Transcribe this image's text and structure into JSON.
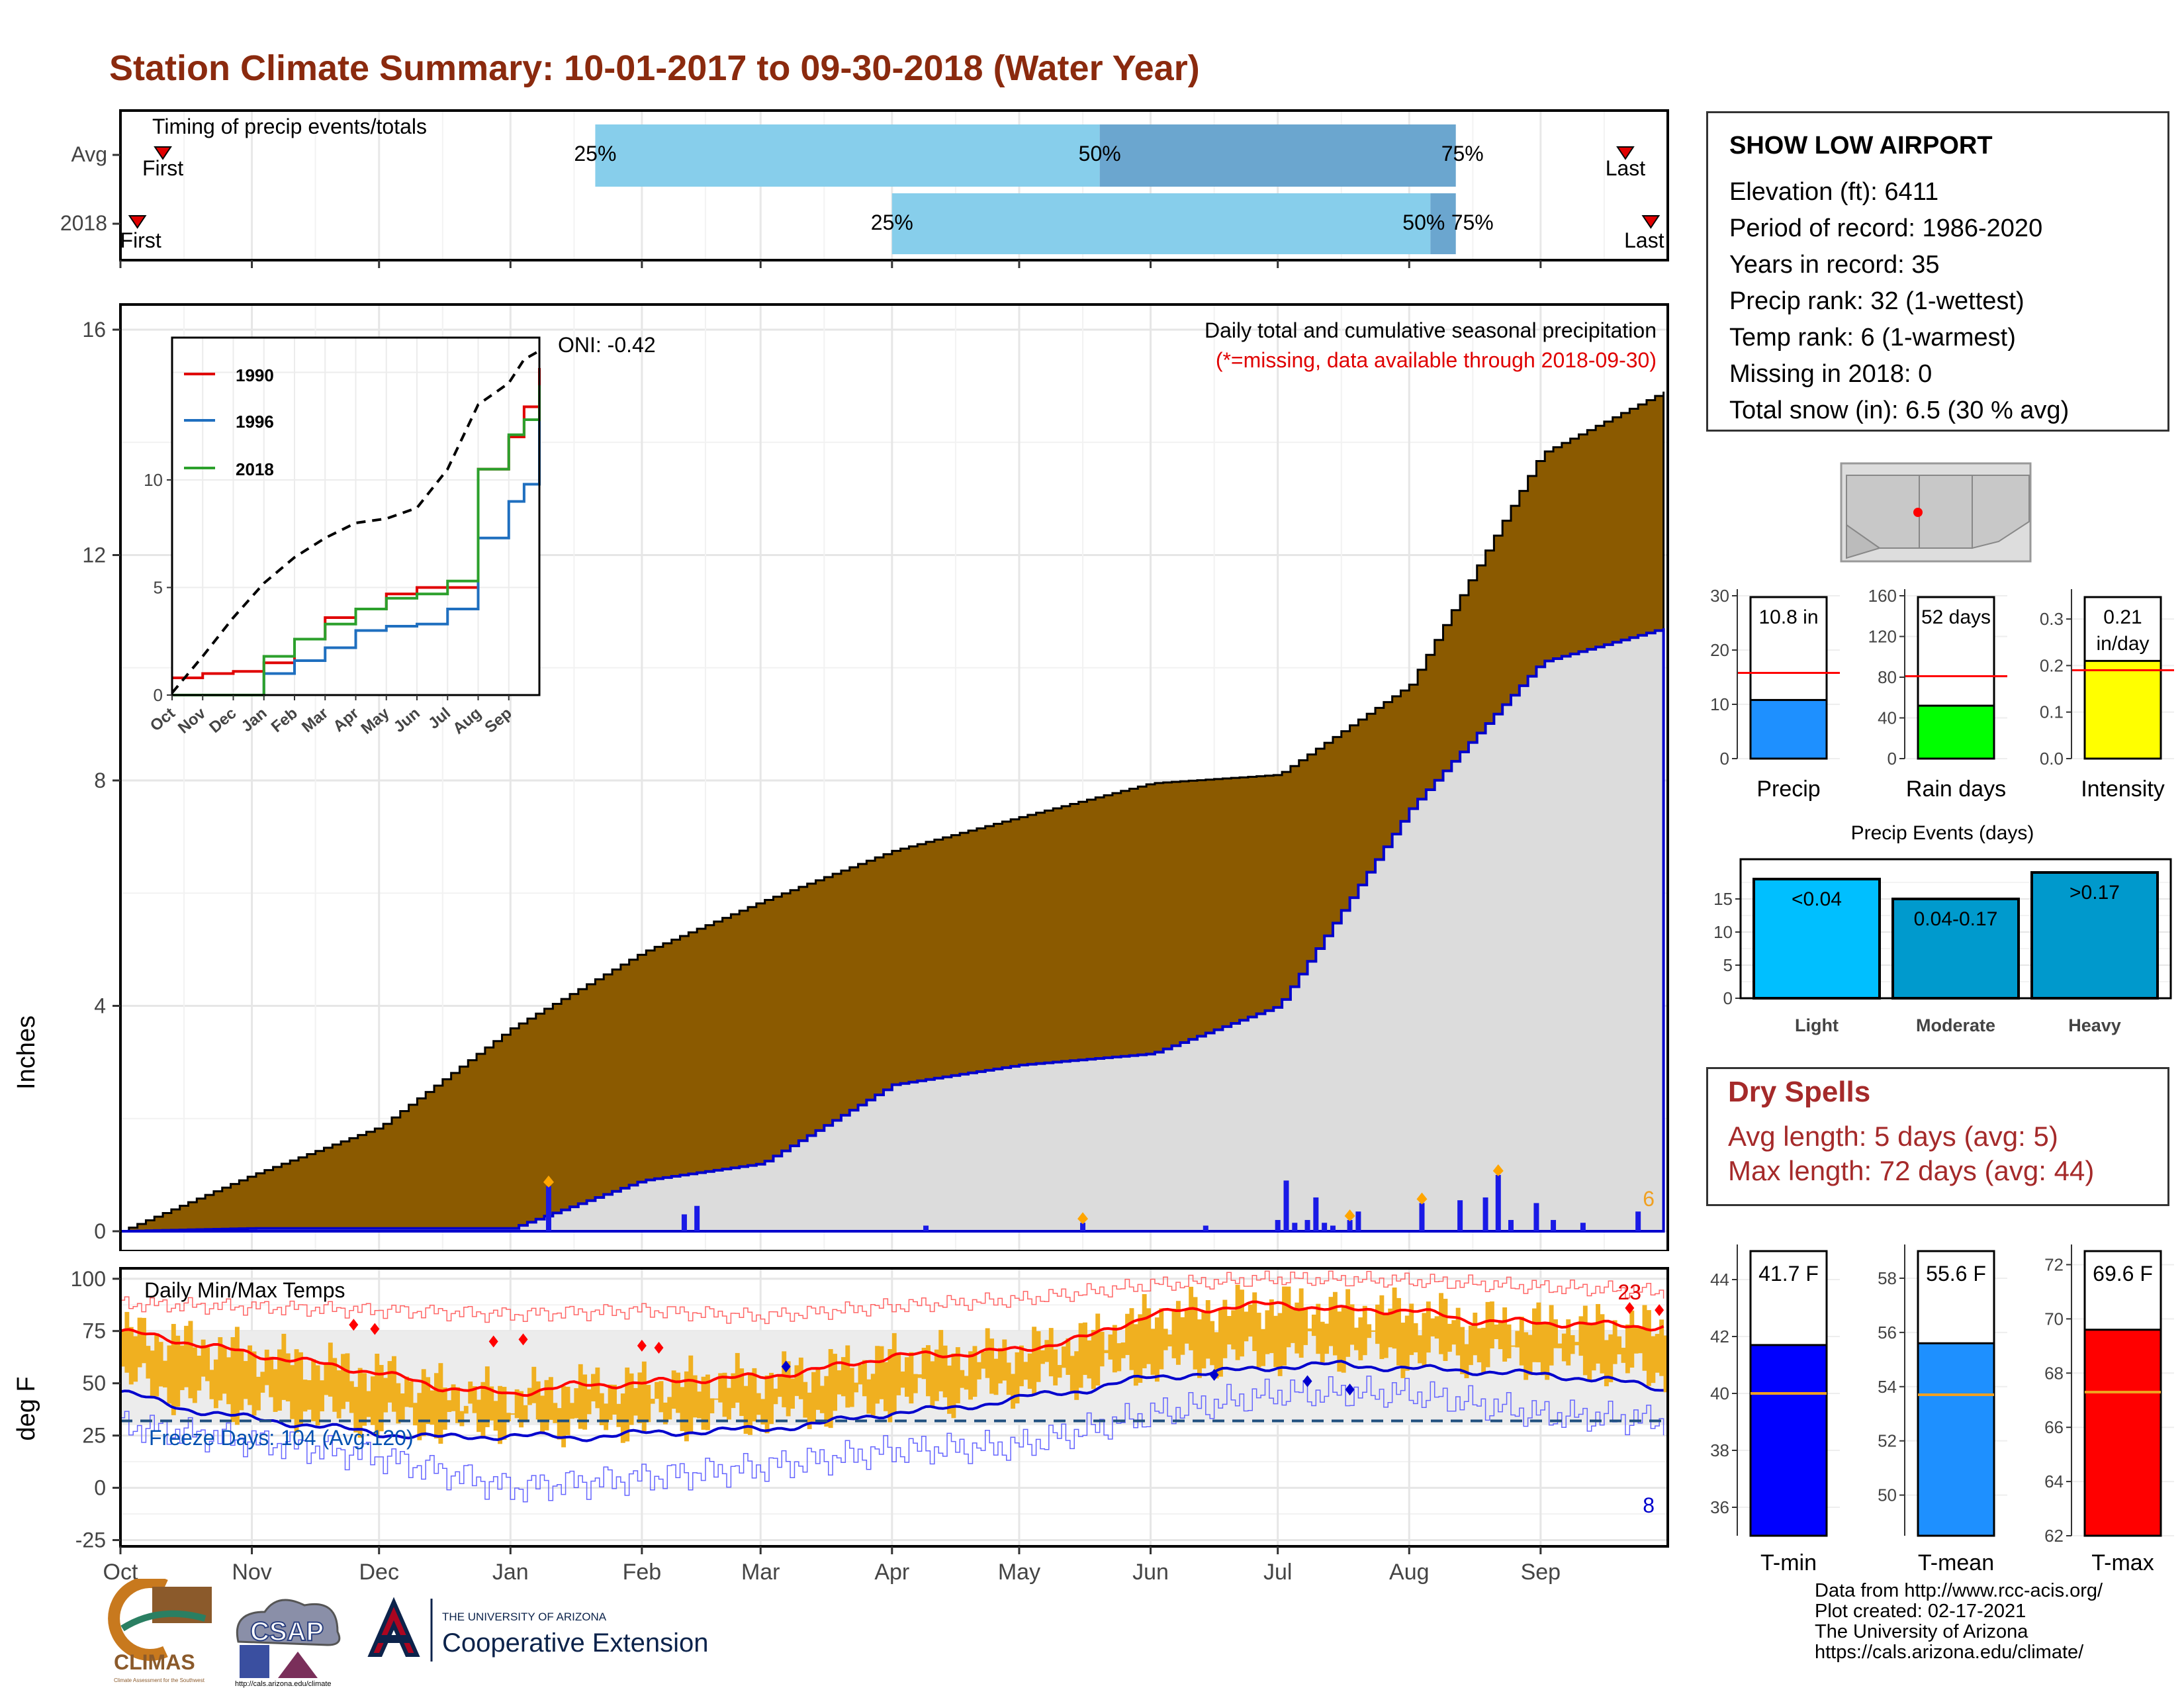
{
  "title": "Station Climate Summary: 10-01-2017 to 09-30-2018 (Water Year)",
  "months": [
    "Oct",
    "Nov",
    "Dec",
    "Jan",
    "Feb",
    "Mar",
    "Apr",
    "May",
    "Jun",
    "Jul",
    "Aug",
    "Sep"
  ],
  "timing": {
    "label": "Timing of precip events/totals",
    "rows": [
      {
        "name": "Avg",
        "first_label": "First",
        "last_label": "Last",
        "q25": "25%",
        "q50": "50%",
        "q75": "75%",
        "first_day": 10,
        "q25_day": 112,
        "q50_day": 231,
        "q75_day": 315,
        "last_day": 355
      },
      {
        "name": "2018",
        "first_label": "First",
        "last_label": "Last",
        "q25": "25%",
        "q50": "50%",
        "q75": "75%",
        "first_day": 4,
        "q25_day": 182,
        "q50_day": 309,
        "q75_day": 315,
        "last_day": 361
      }
    ]
  },
  "colors": {
    "accent": "#8B2A0E",
    "cum_fill": "#8B5A00",
    "avg_fill": "#DCDCDC",
    "avg_line": "#0000CD",
    "daily_bar": "#1A1AE6",
    "q_light": "#87CEEB",
    "q_dark": "#6BA6CF",
    "tmin": "#0000FF",
    "tmean": "#1E90FF",
    "tmax": "#FF0000",
    "precip_bar": "#1E90FF",
    "rain_bar": "#00FF00",
    "intensity_bar": "#FFFF00",
    "events_light": "#00BFFF",
    "events_mod": "#009ACD",
    "events_heavy": "#0099CC",
    "temp_band": "#F0B020",
    "dry_text": "#A52A2A"
  },
  "main_chart": {
    "ylabel": "Inches",
    "yticks": [
      "0",
      "4",
      "8",
      "12",
      "16"
    ],
    "title_line1": "Daily total and cumulative seasonal precipitation",
    "title_line2": "(*=missing, data available through 2018-09-30)",
    "oni": "ONI: -0.42",
    "count_label": "6"
  },
  "inset": {
    "yticks": [
      "0",
      "5",
      "10"
    ],
    "xticks": [
      "Oct",
      "Nov",
      "Dec",
      "Jan",
      "Feb",
      "Mar",
      "Apr",
      "May",
      "Jun",
      "Jul",
      "Aug",
      "Sep"
    ],
    "legend": [
      "1990",
      "1996",
      "2018"
    ]
  },
  "temp_chart": {
    "ylabel": "deg F",
    "yticks": [
      "-25",
      "0",
      "25",
      "50",
      "75",
      "100"
    ],
    "title": "Daily Min/Max Temps",
    "freeze": "Freeze Days: 104 (Avg:120)",
    "max_count": "23",
    "min_count": "8"
  },
  "station": {
    "name": "SHOW LOW AIRPORT",
    "lines": [
      "Elevation (ft): 6411",
      "Period of record: 1986-2020",
      "Years in record: 35",
      "Precip rank: 32 (1-wettest)",
      "Temp rank: 6 (1-warmest)",
      "Missing in 2018: 0",
      "Total snow (in): 6.5 (30 % avg)"
    ]
  },
  "bars": [
    {
      "label": "Precip",
      "value_text": "10.8 in",
      "yticks": [
        "0",
        "10",
        "20",
        "30"
      ]
    },
    {
      "label": "Rain days",
      "value_text": "52 days",
      "yticks": [
        "0",
        "40",
        "80",
        "120",
        "160"
      ]
    },
    {
      "label": "Intensity",
      "value_text1": "0.21",
      "value_text2": "in/day",
      "yticks": [
        "0.0",
        "0.1",
        "0.2",
        "0.3"
      ]
    }
  ],
  "events": {
    "title": "Precip Events (days)",
    "yticks": [
      "0",
      "5",
      "10",
      "15"
    ],
    "bars": [
      {
        "cat": "Light",
        "label": "<0.04"
      },
      {
        "cat": "Moderate",
        "label": "0.04-0.17"
      },
      {
        "cat": "Heavy",
        "label": ">0.17"
      }
    ]
  },
  "dry": {
    "title": "Dry Spells",
    "line1": "Avg length: 5 days (avg: 5)",
    "line2": "Max length: 72 days (avg: 44)"
  },
  "temps": [
    {
      "label": "T-min",
      "value_text": "41.7 F",
      "yticks": [
        "36",
        "38",
        "40",
        "42",
        "44"
      ]
    },
    {
      "label": "T-mean",
      "value_text": "55.6 F",
      "yticks": [
        "50",
        "52",
        "54",
        "56",
        "58"
      ]
    },
    {
      "label": "T-max",
      "value_text": "69.6 F",
      "yticks": [
        "62",
        "64",
        "66",
        "68",
        "70",
        "72"
      ]
    }
  ],
  "footer": [
    "Data from http://www.rcc-acis.org/",
    "Plot created: 02-17-2021",
    "The University of Arizona",
    "https://cals.arizona.edu/climate/"
  ],
  "logos": {
    "climas": "CLIMAS",
    "climas_sub": "Climate Assessment for the Southwest",
    "csap": "CSAP",
    "csap_url": "http://cals.arizona.edu/climate",
    "ua_small": "THE UNIVERSITY OF ARIZONA",
    "ua_big": "Cooperative Extension"
  },
  "chart_data": [
    {
      "type": "area",
      "title": "Daily total and cumulative seasonal precipitation",
      "ylabel": "Inches",
      "ylim": [
        0,
        16.5
      ],
      "x_months": [
        "Oct",
        "Nov",
        "Dec",
        "Jan",
        "Feb",
        "Mar",
        "Apr",
        "May",
        "Jun",
        "Jul",
        "Aug",
        "Sep"
      ],
      "series": [
        {
          "name": "",
          "x_day": [
            0,
            31,
            61,
            92,
            123,
            151,
            182,
            212,
            243,
            273,
            304,
            335,
            364
          ],
          "values": [
            0,
            1.0,
            1.85,
            3.6,
            4.95,
            5.85,
            6.75,
            7.35,
            7.95,
            8.1,
            9.7,
            13.8,
            14.9
          ]
        },
        {
          "name": "",
          "x_day": [
            0,
            31,
            61,
            92,
            123,
            151,
            182,
            212,
            243,
            273,
            304,
            335,
            364
          ],
          "values": [
            0,
            0.05,
            0.05,
            0.05,
            0.9,
            1.2,
            2.6,
            2.95,
            3.15,
            4.0,
            7.5,
            10.1,
            10.7
          ]
        }
      ],
      "daily": {
        "x_day": [
          101,
          133,
          136,
          190,
          227,
          256,
          273,
          275,
          277,
          280,
          282,
          284,
          286,
          290,
          292,
          307,
          316,
          322,
          325,
          328,
          334,
          338,
          345,
          358
        ],
        "values": [
          0.8,
          0.3,
          0.45,
          0.1,
          0.15,
          0.1,
          0.2,
          0.9,
          0.15,
          0.2,
          0.6,
          0.15,
          0.1,
          0.2,
          0.35,
          0.5,
          0.55,
          0.6,
          1.0,
          0.2,
          0.5,
          0.2,
          0.15,
          0.35
        ]
      }
    },
    {
      "type": "line",
      "title": "",
      "ylim": [
        0,
        16
      ],
      "series": [
        {
          "name": "1990",
          "x_month": [
            0,
            1,
            2,
            3,
            4,
            5,
            6,
            7,
            8,
            9,
            10,
            11,
            11.5,
            12
          ],
          "values": [
            0.8,
            1.0,
            1.1,
            1.5,
            2.6,
            3.6,
            4.0,
            4.7,
            5.0,
            5.0,
            10.5,
            12.0,
            13.4,
            15.2
          ]
        },
        {
          "name": "1996",
          "x_month": [
            0,
            1,
            2,
            3,
            4,
            5,
            6,
            7,
            8,
            9,
            10,
            11,
            11.5,
            12
          ],
          "values": [
            0,
            0,
            0,
            1.0,
            1.6,
            2.2,
            3.0,
            3.2,
            3.3,
            4.0,
            7.3,
            9.0,
            9.8,
            13.9
          ]
        },
        {
          "name": "2018",
          "x_month": [
            0,
            1,
            2,
            3,
            4,
            5,
            6,
            7,
            8,
            9,
            10,
            11,
            11.5,
            12
          ],
          "values": [
            0,
            0,
            0,
            1.8,
            2.6,
            3.3,
            4.0,
            4.5,
            4.7,
            5.3,
            10.5,
            12.1,
            12.8,
            14.4
          ]
        },
        {
          "name": "",
          "x_month": [
            0,
            1,
            2,
            3,
            4,
            5,
            6,
            7,
            8,
            9,
            10,
            11,
            11.5,
            12
          ],
          "values": [
            0.1,
            1.8,
            3.6,
            5.2,
            6.4,
            7.3,
            8.0,
            8.2,
            8.7,
            10.5,
            13.5,
            14.5,
            15.6,
            16.0
          ]
        }
      ]
    },
    {
      "type": "line",
      "title": "Daily Min/Max Temps",
      "ylabel": "deg F",
      "ylim": [
        -28,
        105
      ],
      "series": [
        {
          "name": "",
          "x_day": [
            0,
            15,
            31,
            45,
            61,
            76,
            92,
            107,
            123,
            137,
            151,
            166,
            182,
            197,
            212,
            228,
            243,
            258,
            273,
            288,
            304,
            319,
            335,
            350,
            364
          ],
          "values": [
            75,
            70,
            64,
            60,
            55,
            48,
            45,
            49,
            50,
            52,
            53,
            57,
            63,
            64,
            66,
            72,
            83,
            86,
            88,
            85,
            85,
            80,
            79,
            78,
            77
          ]
        },
        {
          "name": "",
          "x_day": [
            0,
            15,
            31,
            45,
            61,
            76,
            92,
            107,
            123,
            137,
            151,
            166,
            182,
            197,
            212,
            228,
            243,
            258,
            273,
            288,
            304,
            319,
            335,
            350,
            364
          ],
          "values": [
            46,
            38,
            33,
            30,
            26,
            24,
            25,
            24,
            26,
            27,
            28,
            31,
            36,
            38,
            43,
            47,
            53,
            55,
            58,
            59,
            57,
            56,
            54,
            52,
            47
          ]
        },
        {
          "name": "",
          "x_day": [
            0,
            61,
            92,
            123,
            151,
            182,
            212,
            243,
            273,
            304,
            335,
            364
          ],
          "values": [
            88,
            85,
            83,
            85,
            82,
            87,
            90,
            97,
            100,
            99,
            96,
            94
          ]
        },
        {
          "name": "",
          "x_day": [
            0,
            61,
            92,
            123,
            151,
            182,
            212,
            243,
            273,
            304,
            335,
            364
          ],
          "values": [
            30,
            15,
            0,
            5,
            10,
            18,
            20,
            35,
            45,
            45,
            35,
            32
          ]
        }
      ],
      "freeze_line": 32
    },
    {
      "type": "bar",
      "categories": [
        "Precip"
      ],
      "values": [
        10.8
      ],
      "avg": 15.8,
      "ylim": [
        0,
        30
      ]
    },
    {
      "type": "bar",
      "categories": [
        "Rain days"
      ],
      "values": [
        52
      ],
      "avg": 81,
      "ylim": [
        0,
        160
      ]
    },
    {
      "type": "bar",
      "categories": [
        "Intensity"
      ],
      "values": [
        0.21
      ],
      "avg": 0.19,
      "ylim": [
        0,
        0.35
      ]
    },
    {
      "type": "bar",
      "title": "Precip Events (days)",
      "categories": [
        "Light",
        "Moderate",
        "Heavy"
      ],
      "values": [
        18,
        15,
        19
      ],
      "ylim": [
        0,
        20
      ]
    },
    {
      "type": "bar",
      "categories": [
        "T-min"
      ],
      "values": [
        41.7
      ],
      "avg": 40.0,
      "ylim": [
        35,
        45
      ]
    },
    {
      "type": "bar",
      "categories": [
        "T-mean"
      ],
      "values": [
        55.6
      ],
      "avg": 53.7,
      "ylim": [
        48.5,
        59
      ]
    },
    {
      "type": "bar",
      "categories": [
        "T-max"
      ],
      "values": [
        69.6
      ],
      "avg": 67.3,
      "ylim": [
        62,
        72.5
      ]
    }
  ]
}
